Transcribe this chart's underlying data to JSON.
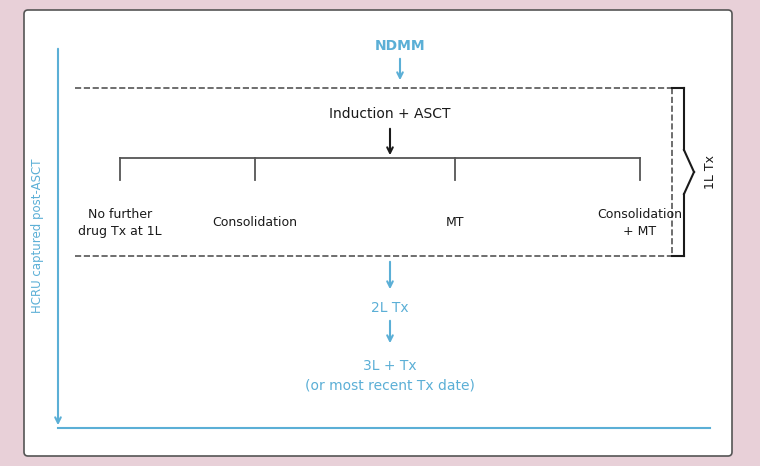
{
  "bg_outer": "#e8d0d8",
  "bg_inner": "#ffffff",
  "blue_color": "#5bafd6",
  "black_color": "#1a1a1a",
  "dark_gray": "#555555",
  "ndmm_text": "NDMM",
  "induction_text": "Induction + ASCT",
  "branch_labels": [
    "No further\ndrug Tx at 1L",
    "Consolidation",
    "MT",
    "Consolidation\n+ MT"
  ],
  "label_2l": "2L Tx",
  "label_3l": "3L + Tx\n(or most recent Tx date)",
  "hcru_text": "HCRU captured post-ASCT",
  "label_1l": "1L Tx",
  "title_fontsize": 10,
  "small_fontsize": 9,
  "hcru_fontsize": 8.5
}
